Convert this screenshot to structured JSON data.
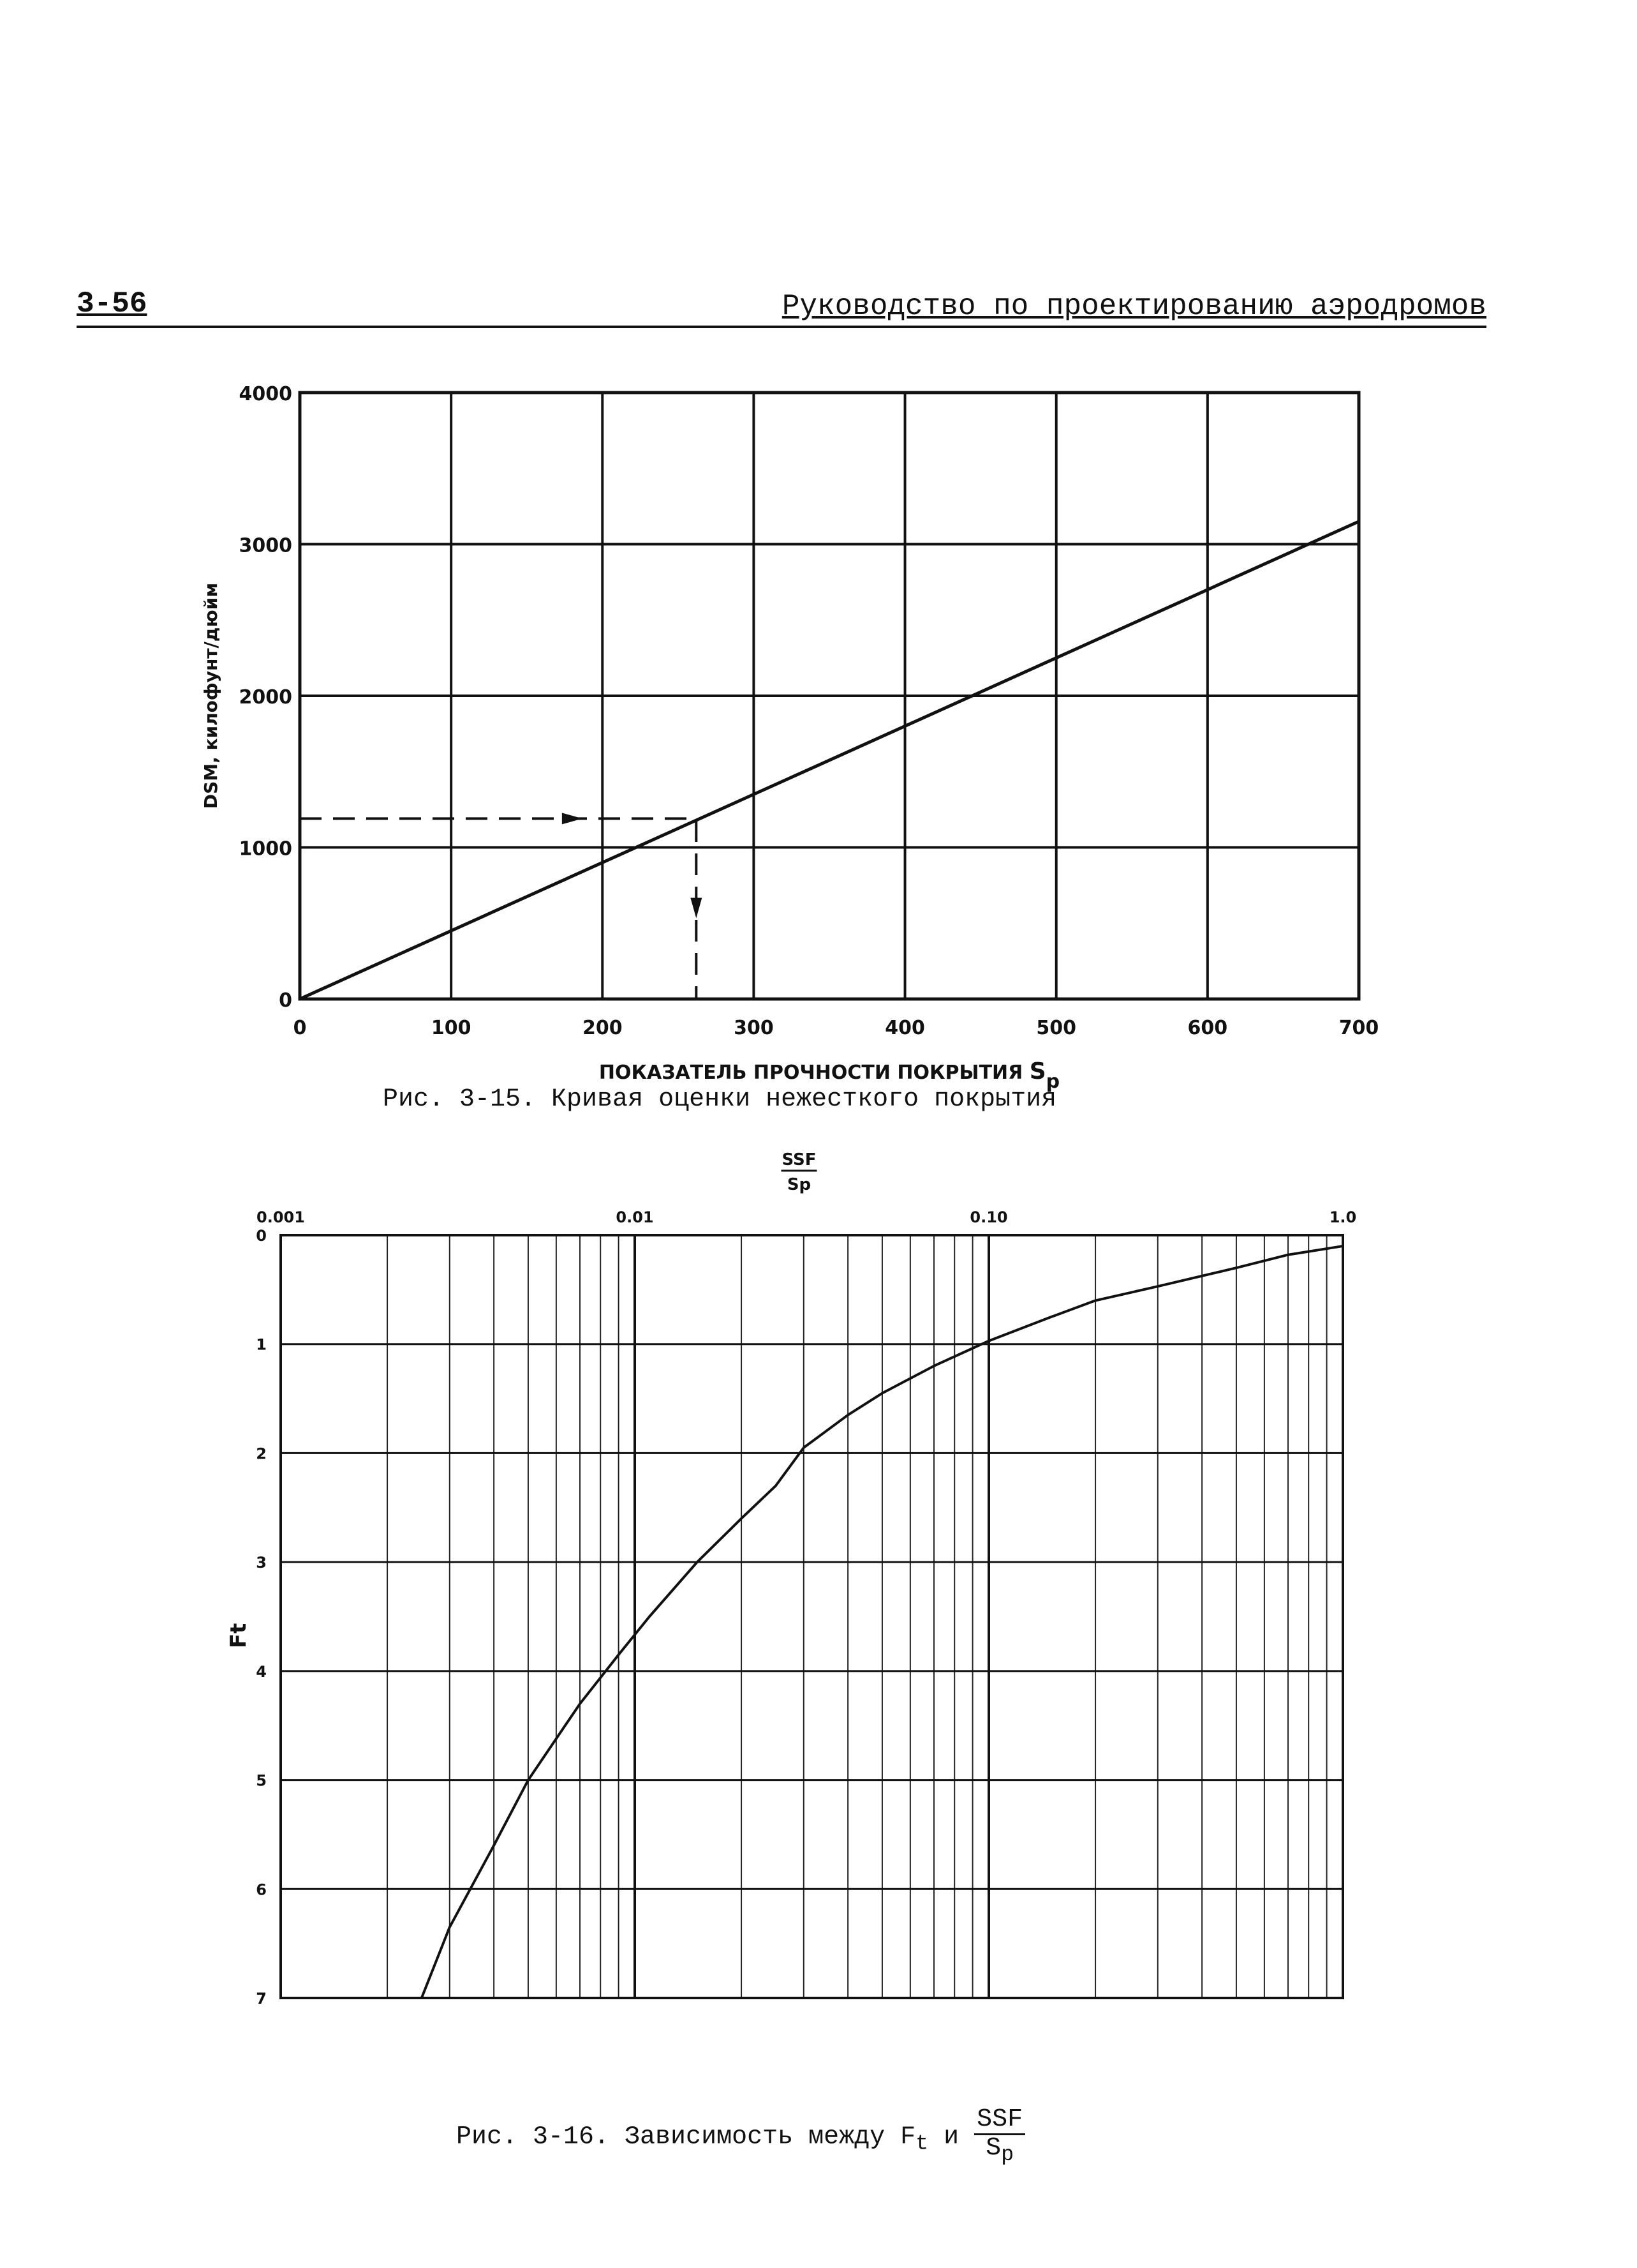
{
  "header": {
    "page_number": "3-56",
    "running_title": "Руководство по проектированию аэродромов"
  },
  "chart_data": [
    {
      "type": "line",
      "xlabel": "ПОКАЗАТЕЛЬ ПРОЧНОСТИ ПОКРЫТИЯ",
      "xlabel_symbol": "S",
      "xlabel_sub": "p",
      "ylabel": "DSM, килофунт/дюйм",
      "xlim": [
        0,
        700
      ],
      "ylim": [
        0,
        4000
      ],
      "x_ticks": [
        0,
        100,
        200,
        300,
        400,
        500,
        600,
        700
      ],
      "y_ticks": [
        0,
        1000,
        2000,
        3000,
        4000
      ],
      "grid": true,
      "series": [
        {
          "x": [
            0,
            700
          ],
          "y": [
            0,
            3150
          ]
        }
      ],
      "annotation_path": {
        "x": [
          0,
          262,
          262
        ],
        "y": [
          1190,
          1190,
          0
        ]
      },
      "caption": "Рис. 3-15.  Кривая оценки нежесткого покрытия"
    },
    {
      "type": "line",
      "xscale": "log",
      "yaxis_inverted": true,
      "xlabel_num": "SSF",
      "xlabel_den": "Sp",
      "ylabel": "Ft",
      "xlim": [
        0.001,
        1.0
      ],
      "ylim": [
        0,
        7
      ],
      "x_tick_labels": [
        "0.001",
        "0.01",
        "0.10",
        "1.0"
      ],
      "x_tick_values": [
        0.001,
        0.01,
        0.1,
        1.0
      ],
      "y_ticks": [
        0,
        1,
        2,
        3,
        4,
        5,
        6,
        7
      ],
      "grid": true,
      "series": [
        {
          "x": [
            0.0025,
            0.003,
            0.004,
            0.005,
            0.007,
            0.009,
            0.011,
            0.015,
            0.02,
            0.025,
            0.03,
            0.04,
            0.05,
            0.07,
            0.1,
            0.15,
            0.2,
            0.3,
            0.5,
            0.7,
            1.0
          ],
          "y": [
            7.0,
            6.35,
            5.6,
            5.0,
            4.3,
            3.85,
            3.5,
            3.0,
            2.6,
            2.3,
            1.95,
            1.65,
            1.45,
            1.2,
            0.97,
            0.75,
            0.6,
            0.47,
            0.3,
            0.18,
            0.1
          ]
        }
      ],
      "caption_prefix": "Рис. 3-16.  Зависимость между F",
      "caption_sub": "t",
      "caption_mid": " и ",
      "caption_num": "SSF",
      "caption_den": "S",
      "caption_den_sub": "p"
    }
  ]
}
